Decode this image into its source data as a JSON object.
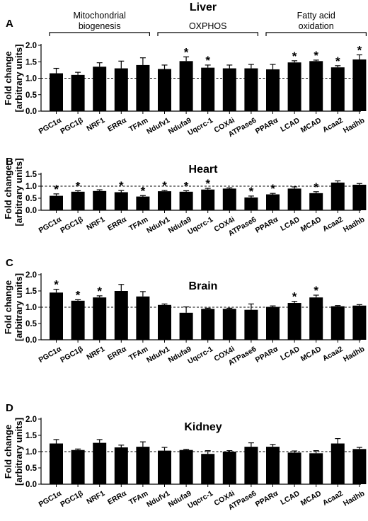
{
  "chart_data": [
    {
      "type": "bar",
      "panel_letter": "A",
      "title": "Liver",
      "ylabel_lines": [
        "Fold change",
        "[arbitrary units]"
      ],
      "ylim": [
        0,
        2.0
      ],
      "yticks": [
        "0.0",
        "0.5",
        "1.0",
        "1.5",
        "2.0"
      ],
      "ytick_values": [
        0.0,
        0.5,
        1.0,
        1.5,
        2.0
      ],
      "reference_line": 1.0,
      "groups": [
        {
          "label_lines": [
            "Mitochondrial",
            "biogenesis"
          ],
          "from": 0,
          "to": 4
        },
        {
          "label_lines": [
            "OXPHOS"
          ],
          "from": 5,
          "to": 9
        },
        {
          "label_lines": [
            "Fatty acid",
            "oxidation"
          ],
          "from": 10,
          "to": 14
        }
      ],
      "categories": [
        "PGC1α",
        "PGC1β",
        "NRF1",
        "ERRα",
        "TFAm",
        "Ndufv1",
        "Ndufa9",
        "Uqcrc-1",
        "COX4i",
        "ATPase6",
        "PPARα",
        "LCAD",
        "MCAD",
        "Acaa2",
        "Hadhb"
      ],
      "values": [
        1.15,
        1.1,
        1.35,
        1.3,
        1.4,
        1.28,
        1.52,
        1.32,
        1.3,
        1.3,
        1.27,
        1.48,
        1.52,
        1.33,
        1.57
      ],
      "errors": [
        0.15,
        0.08,
        0.12,
        0.22,
        0.22,
        0.12,
        0.13,
        0.08,
        0.1,
        0.12,
        0.15,
        0.05,
        0.03,
        0.05,
        0.14
      ],
      "significant": [
        false,
        false,
        false,
        false,
        false,
        false,
        true,
        true,
        false,
        false,
        false,
        true,
        true,
        true,
        true
      ],
      "significance_marker": "*"
    },
    {
      "type": "bar",
      "panel_letter": "B",
      "title": "Heart",
      "ylabel_lines": [
        "Fold change",
        "[arbitrary units]"
      ],
      "ylim": [
        0,
        1.5
      ],
      "yticks": [
        "0.0",
        "0.5",
        "1.0",
        "1.5"
      ],
      "ytick_values": [
        0.0,
        0.5,
        1.0,
        1.5
      ],
      "reference_line": 1.0,
      "categories": [
        "PGC1α",
        "PGC1β",
        "NRF1",
        "ERRα",
        "TFAm",
        "Ndufv1",
        "Ndufa9",
        "Uqcrc-1",
        "COX4i",
        "ATPase6",
        "PPARα",
        "LCAD",
        "MCAD",
        "Acaa2",
        "Hadhb"
      ],
      "values": [
        0.6,
        0.77,
        0.8,
        0.75,
        0.57,
        0.79,
        0.77,
        0.86,
        0.9,
        0.53,
        0.66,
        0.9,
        0.71,
        1.15,
        1.06
      ],
      "errors": [
        0.08,
        0.04,
        0.05,
        0.07,
        0.04,
        0.03,
        0.04,
        0.05,
        0.03,
        0.06,
        0.04,
        0.07,
        0.06,
        0.07,
        0.05
      ],
      "significant": [
        true,
        true,
        false,
        true,
        true,
        true,
        true,
        true,
        false,
        true,
        true,
        false,
        true,
        false,
        false
      ],
      "significance_marker": "*"
    },
    {
      "type": "bar",
      "panel_letter": "C",
      "title": "Brain",
      "ylabel_lines": [
        "Fold change",
        "[arbitrary units]"
      ],
      "ylim": [
        0,
        2.0
      ],
      "yticks": [
        "0.0",
        "0.5",
        "1.0",
        "1.5",
        "2.0"
      ],
      "ytick_values": [
        0.0,
        0.5,
        1.0,
        1.5,
        2.0
      ],
      "reference_line": 1.0,
      "categories": [
        "PGC1α",
        "PGC1β",
        "NRF1",
        "ERRα",
        "TFAm",
        "Ndufv1",
        "Ndufa9",
        "Uqcrc-1",
        "COX4i",
        "ATPase6",
        "PPARα",
        "LCAD",
        "MCAD",
        "Acaa2",
        "Hadhb"
      ],
      "values": [
        1.45,
        1.2,
        1.3,
        1.5,
        1.33,
        1.07,
        0.83,
        0.95,
        0.95,
        0.92,
        1.01,
        1.13,
        1.3,
        1.03,
        1.05
      ],
      "errors": [
        0.1,
        0.03,
        0.05,
        0.2,
        0.15,
        0.03,
        0.18,
        0.02,
        0.02,
        0.18,
        0.03,
        0.05,
        0.07,
        0.02,
        0.03
      ],
      "significant": [
        true,
        true,
        true,
        false,
        false,
        false,
        false,
        false,
        false,
        false,
        false,
        true,
        true,
        false,
        false
      ],
      "significance_marker": "*"
    },
    {
      "type": "bar",
      "panel_letter": "D",
      "title": "Kidney",
      "ylabel_lines": [
        "Fold change",
        "[arbitrary units]"
      ],
      "ylim": [
        0,
        2.0
      ],
      "yticks": [
        "0.0",
        "0.5",
        "1.0",
        "1.5",
        "2.0"
      ],
      "ytick_values": [
        0.0,
        0.5,
        1.0,
        1.5,
        2.0
      ],
      "reference_line": 1.0,
      "categories": [
        "PGC1α",
        "PGC1β",
        "NRF1",
        "ERRα",
        "TFAm",
        "Ndufv1",
        "Ndufa9",
        "Uqcrc-1",
        "COX4i",
        "ATPase6",
        "PPARα",
        "LCAD",
        "MCAD",
        "Acaa2",
        "Hadhb"
      ],
      "values": [
        1.25,
        1.05,
        1.27,
        1.13,
        1.15,
        1.03,
        1.05,
        0.93,
        1.0,
        1.15,
        1.15,
        0.97,
        0.95,
        1.25,
        1.08
      ],
      "errors": [
        0.12,
        0.03,
        0.1,
        0.07,
        0.15,
        0.1,
        0.02,
        0.1,
        0.03,
        0.12,
        0.07,
        0.05,
        0.08,
        0.15,
        0.05
      ],
      "significant": [
        false,
        false,
        false,
        false,
        false,
        false,
        false,
        false,
        false,
        false,
        false,
        false,
        false,
        false,
        false
      ],
      "significance_marker": "*"
    }
  ]
}
